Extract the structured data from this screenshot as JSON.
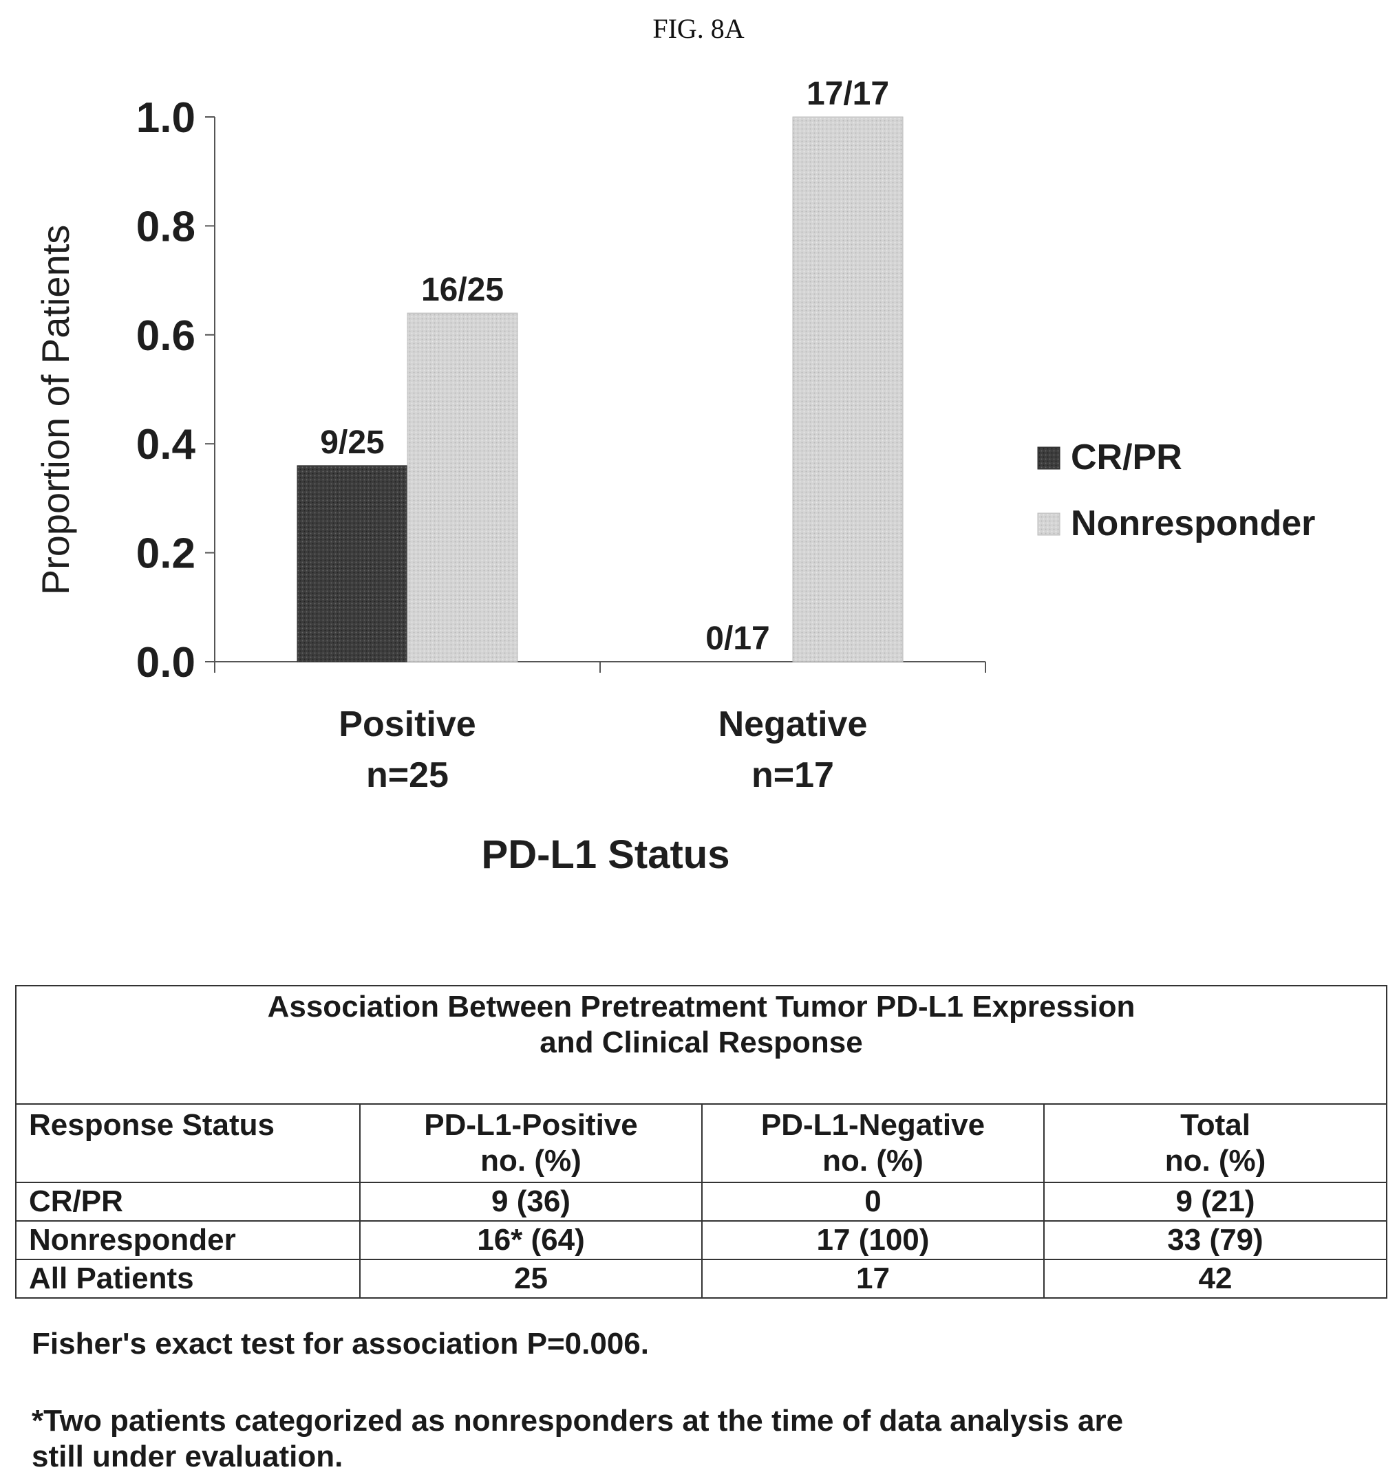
{
  "figure_label": "FIG. 8A",
  "chart_data": {
    "type": "bar",
    "categories": [
      "Positive",
      "Negative"
    ],
    "category_sublabels": [
      "n=25",
      "n=17"
    ],
    "series": [
      {
        "name": "CR/PR",
        "values": [
          0.36,
          0.0
        ],
        "labels": [
          "9/25",
          "0/17"
        ],
        "color": "#3d3d3d"
      },
      {
        "name": "Nonresponder",
        "values": [
          0.64,
          1.0
        ],
        "labels": [
          "16/25",
          "17/17"
        ],
        "color": "#cfcfcf"
      }
    ],
    "ylabel": "Proportion of Patients",
    "xlabel": "PD-L1 Status",
    "ylim": [
      0,
      1.0
    ],
    "yticks": [
      "0.0",
      "0.2",
      "0.4",
      "0.6",
      "0.8",
      "1.0"
    ],
    "grid": false,
    "legend_position": "right"
  },
  "table": {
    "title_line1": "Association Between Pretreatment Tumor PD-L1 Expression",
    "title_line2": "and Clinical Response",
    "headers": [
      {
        "line1": "Response Status",
        "line2": ""
      },
      {
        "line1": "PD-L1-Positive",
        "line2": "no. (%)"
      },
      {
        "line1": "PD-L1-Negative",
        "line2": "no. (%)"
      },
      {
        "line1": "Total",
        "line2": "no. (%)"
      }
    ],
    "rows": [
      [
        "CR/PR",
        "9 (36)",
        "0",
        "9 (21)"
      ],
      [
        "Nonresponder",
        "16* (64)",
        "17 (100)",
        "33 (79)"
      ],
      [
        "All Patients",
        "25",
        "17",
        "42"
      ]
    ]
  },
  "fisher_note": "Fisher's exact test for association P=0.006.",
  "footnote_line1": "*Two patients categorized as nonresponders at the time of data analysis are",
  "footnote_line2": "still under evaluation."
}
